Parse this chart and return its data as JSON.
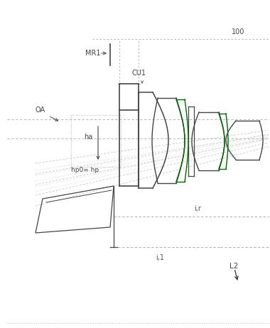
{
  "bg_color": "#ffffff",
  "line_color": "#444444",
  "green_color": "#006600",
  "dim_color": "#888888",
  "dot_color": "#aaaaaa",
  "label_100": "100",
  "label_MR1": "MR1",
  "label_CU1": "CU1",
  "label_OA": "OA",
  "label_ha": "ha",
  "label_hp": "hp0= hp",
  "label_lr": "i,r",
  "label_l1": "i,1",
  "label_L2": "L2",
  "fig_width": 3.8,
  "fig_height": 4.62,
  "dpi": 100
}
